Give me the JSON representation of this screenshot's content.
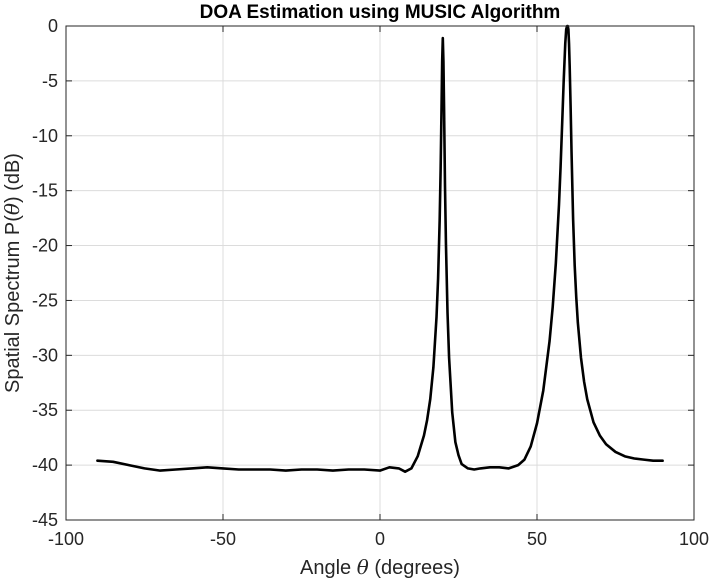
{
  "chart_data": {
    "type": "line",
    "title": "DOA Estimation using MUSIC Algorithm",
    "xlabel_parts": [
      "Angle ",
      "θ",
      " (degrees)"
    ],
    "ylabel_parts": [
      "Spatial Spectrum P(",
      "θ",
      ") (dB)"
    ],
    "xlim": [
      -100,
      100
    ],
    "ylim": [
      -45,
      0
    ],
    "xticks": [
      -100,
      -50,
      0,
      50,
      100
    ],
    "yticks": [
      0,
      -5,
      -10,
      -15,
      -20,
      -25,
      -30,
      -35,
      -40,
      -45
    ],
    "grid": true,
    "legend": "none",
    "line_color": "#000000",
    "series": [
      {
        "x": [
          -90,
          -85,
          -80,
          -75,
          -70,
          -65,
          -60,
          -55,
          -50,
          -45,
          -40,
          -35,
          -30,
          -25,
          -20,
          -15,
          -10,
          -5,
          0,
          3,
          6,
          8,
          10,
          12,
          14,
          15,
          16,
          17,
          18,
          18.5,
          19,
          19.3,
          19.6,
          19.8,
          20,
          20.2,
          20.4,
          20.7,
          21,
          21.5,
          22,
          23,
          24,
          25,
          26,
          28,
          30,
          32,
          35,
          38,
          41,
          44,
          46,
          48,
          50,
          52,
          54,
          55,
          56,
          57,
          57.5,
          58,
          58.5,
          59,
          59.3,
          59.6,
          59.8,
          60,
          60.2,
          60.4,
          60.7,
          61,
          61.5,
          62,
          62.5,
          63,
          64,
          65,
          66,
          68,
          70,
          72,
          75,
          78,
          81,
          84,
          87,
          90
        ],
        "y": [
          -39.6,
          -39.7,
          -40.0,
          -40.3,
          -40.5,
          -40.4,
          -40.3,
          -40.2,
          -40.3,
          -40.4,
          -40.4,
          -40.4,
          -40.5,
          -40.4,
          -40.4,
          -40.5,
          -40.4,
          -40.4,
          -40.5,
          -40.2,
          -40.3,
          -40.6,
          -40.3,
          -39.2,
          -37.3,
          -35.9,
          -34.0,
          -31.1,
          -26.5,
          -23.0,
          -17.7,
          -13.2,
          -7.4,
          -3.2,
          -1.1,
          -3.2,
          -7.4,
          -14.6,
          -19.8,
          -26.1,
          -30.2,
          -35.2,
          -37.9,
          -39.1,
          -39.9,
          -40.3,
          -40.4,
          -40.3,
          -40.2,
          -40.2,
          -40.3,
          -40.0,
          -39.5,
          -38.3,
          -36.2,
          -33.2,
          -28.7,
          -25.6,
          -21.6,
          -16.3,
          -12.9,
          -9.0,
          -5.0,
          -1.6,
          -0.3,
          0.0,
          0.0,
          -0.3,
          -1.6,
          -3.6,
          -7.3,
          -11.5,
          -17.6,
          -21.8,
          -24.7,
          -27.0,
          -30.2,
          -32.4,
          -34.0,
          -36.1,
          -37.3,
          -38.1,
          -38.8,
          -39.2,
          -39.4,
          -39.5,
          -39.6,
          -39.6
        ]
      }
    ]
  }
}
